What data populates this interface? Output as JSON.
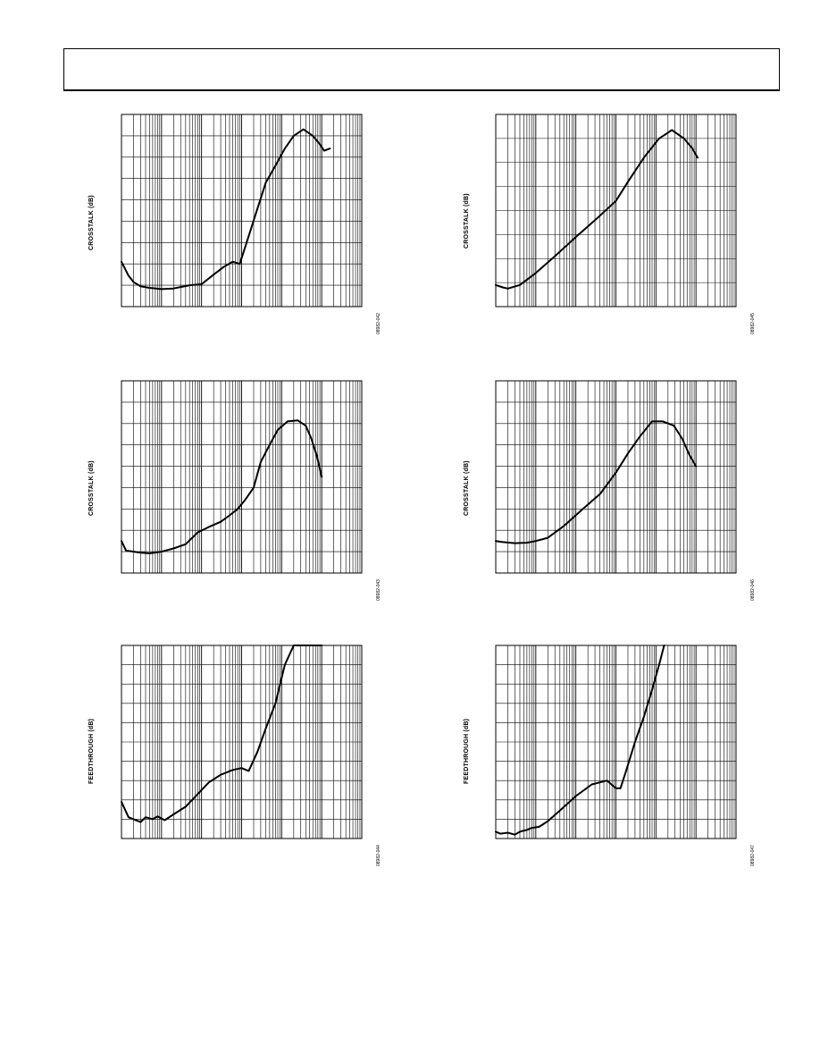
{
  "header": {},
  "charts": [
    {
      "id": "p1",
      "ylabel": "CROSSTALK (dB)",
      "fig_id": "08982-042",
      "chart_data": {
        "type": "line",
        "title": "",
        "xlabel": "",
        "ylabel": "CROSSTALK (dB)",
        "x_scale": "log",
        "xlim": [
          0.001,
          1000
        ],
        "ylim": [
          0,
          9
        ],
        "grid": true,
        "series": [
          {
            "x": [
              0.001,
              0.0015,
              0.002,
              0.003,
              0.005,
              0.01,
              0.02,
              0.05,
              0.1,
              0.2,
              0.35,
              0.6,
              0.9,
              1.5,
              2.5,
              4,
              7,
              12,
              20,
              35,
              60,
              90,
              115,
              160
            ],
            "y": [
              2.1,
              1.45,
              1.15,
              0.95,
              0.88,
              0.82,
              0.85,
              1.0,
              1.05,
              1.5,
              1.85,
              2.1,
              2.0,
              3.3,
              4.6,
              5.8,
              6.6,
              7.4,
              8.0,
              8.3,
              8.0,
              7.6,
              7.3,
              7.4
            ]
          }
        ]
      }
    },
    {
      "id": "p2",
      "ylabel": "CROSSTALK (dB)",
      "fig_id": "08982-043",
      "chart_data": {
        "type": "line",
        "title": "",
        "xlabel": "",
        "ylabel": "CROSSTALK (dB)",
        "x_scale": "log",
        "xlim": [
          0.001,
          1000
        ],
        "ylim": [
          0,
          9
        ],
        "grid": true,
        "series": [
          {
            "x": [
              0.001,
              0.0013,
              0.002,
              0.003,
              0.005,
              0.01,
              0.02,
              0.04,
              0.08,
              0.15,
              0.3,
              0.5,
              0.8,
              1.2,
              2,
              3,
              5,
              8,
              14,
              25,
              40,
              55,
              75,
              100
            ],
            "y": [
              1.5,
              1.05,
              1.0,
              0.95,
              0.92,
              1.0,
              1.15,
              1.35,
              1.9,
              2.15,
              2.4,
              2.7,
              3.0,
              3.4,
              4.0,
              5.2,
              6.0,
              6.7,
              7.1,
              7.15,
              6.9,
              6.3,
              5.5,
              4.5
            ]
          }
        ]
      }
    },
    {
      "id": "p3",
      "ylabel": "FEEDTHROUGH (dB)",
      "fig_id": "08982-044",
      "chart_data": {
        "type": "line",
        "title": "",
        "xlabel": "",
        "ylabel": "FEEDTHROUGH (dB)",
        "x_scale": "log",
        "xlim": [
          0.001,
          1000
        ],
        "ylim": [
          0,
          10
        ],
        "grid": true,
        "series": [
          {
            "x": [
              0.001,
              0.0015,
              0.002,
              0.003,
              0.004,
              0.006,
              0.008,
              0.012,
              0.02,
              0.04,
              0.08,
              0.15,
              0.3,
              0.6,
              1.0,
              1.5,
              2.5,
              4,
              7,
              12,
              20,
              35,
              60,
              80,
              100
            ],
            "y": [
              1.9,
              1.1,
              1.0,
              0.85,
              1.1,
              1.0,
              1.15,
              0.95,
              1.25,
              1.65,
              2.3,
              2.9,
              3.3,
              3.55,
              3.65,
              3.5,
              4.5,
              5.7,
              7.0,
              9.0,
              10.0,
              10.0,
              10.0,
              10.0,
              10.0
            ]
          }
        ]
      }
    },
    {
      "id": "p4",
      "ylabel": "CROSSTALK (dB)",
      "fig_id": "08982-045",
      "chart_data": {
        "type": "line",
        "title": "",
        "xlabel": "",
        "ylabel": "CROSSTALK (dB)",
        "x_scale": "log",
        "xlim": [
          0.001,
          1000
        ],
        "ylim": [
          0,
          8
        ],
        "grid": true,
        "series": [
          {
            "x": [
              0.001,
              0.0015,
              0.002,
              0.004,
              0.01,
              0.03,
              0.1,
              0.3,
              1,
              2,
              5,
              12,
              25,
              50,
              80,
              110
            ],
            "y": [
              0.9,
              0.8,
              0.75,
              0.9,
              1.4,
              2.1,
              2.9,
              3.6,
              4.4,
              5.2,
              6.2,
              7.0,
              7.35,
              7.0,
              6.6,
              6.2
            ]
          }
        ]
      }
    },
    {
      "id": "p5",
      "ylabel": "CROSSTALK (dB)",
      "fig_id": "08982-046",
      "chart_data": {
        "type": "line",
        "title": "",
        "xlabel": "",
        "ylabel": "CROSSTALK (dB)",
        "x_scale": "log",
        "xlim": [
          0.001,
          1000
        ],
        "ylim": [
          0,
          9
        ],
        "grid": true,
        "series": [
          {
            "x": [
              0.001,
              0.0015,
              0.003,
              0.006,
              0.01,
              0.02,
              0.05,
              0.15,
              0.4,
              1,
              2,
              4,
              8,
              15,
              28,
              45,
              70,
              100
            ],
            "y": [
              1.5,
              1.45,
              1.4,
              1.42,
              1.5,
              1.65,
              2.2,
              3.0,
              3.7,
              4.7,
              5.6,
              6.4,
              7.1,
              7.1,
              6.9,
              6.3,
              5.5,
              5.0
            ]
          }
        ]
      }
    },
    {
      "id": "p6",
      "ylabel": "FEEDTHROUGH (dB)",
      "fig_id": "08982-047",
      "chart_data": {
        "type": "line",
        "title": "",
        "xlabel": "",
        "ylabel": "FEEDTHROUGH (dB)",
        "x_scale": "log",
        "xlim": [
          0.001,
          1000
        ],
        "ylim": [
          0,
          10
        ],
        "grid": true,
        "series": [
          {
            "x": [
              0.001,
              0.0013,
              0.002,
              0.003,
              0.004,
              0.006,
              0.008,
              0.012,
              0.02,
              0.04,
              0.1,
              0.25,
              0.6,
              1.0,
              1.3,
              1.8,
              3,
              5,
              8,
              12,
              16
            ],
            "y": [
              0.35,
              0.25,
              0.3,
              0.2,
              0.35,
              0.45,
              0.55,
              0.6,
              0.9,
              1.45,
              2.2,
              2.8,
              3.0,
              2.6,
              2.6,
              3.5,
              5.0,
              6.3,
              7.7,
              9.0,
              10.0
            ]
          }
        ]
      }
    }
  ]
}
